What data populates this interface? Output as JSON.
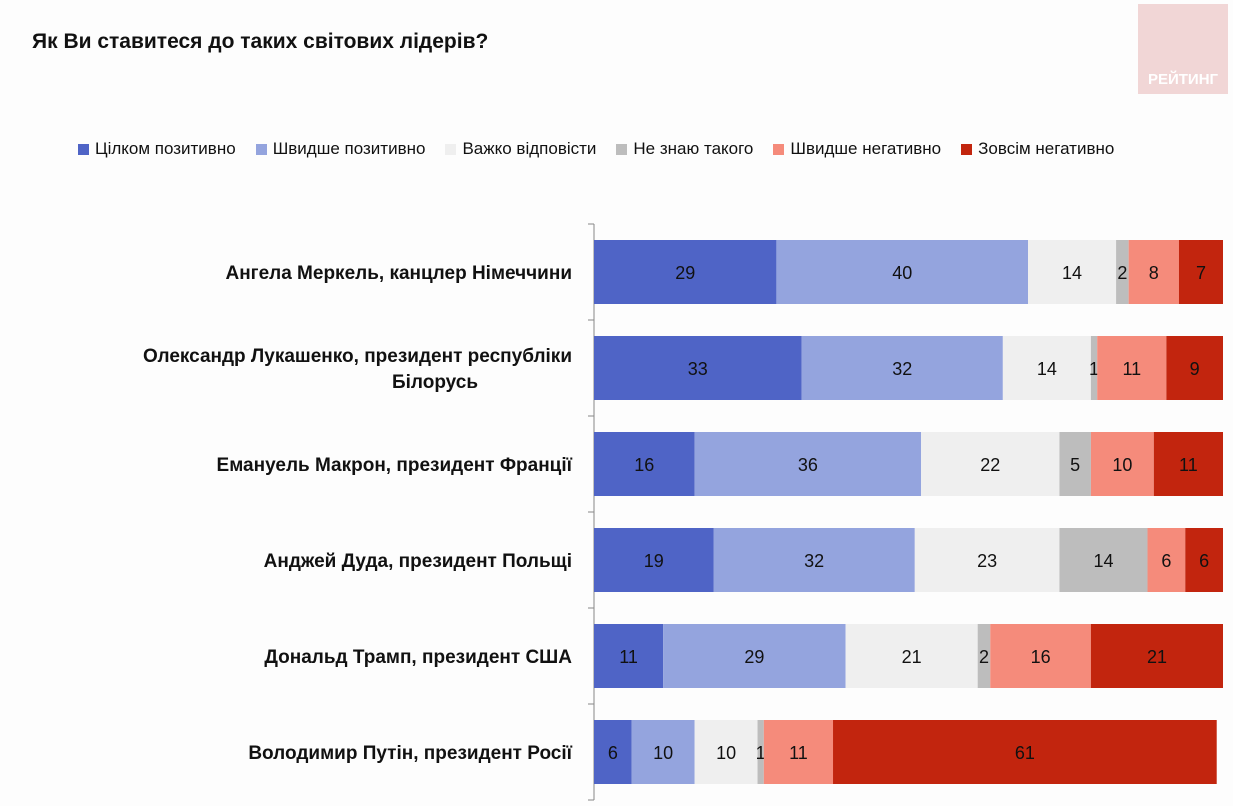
{
  "chart_data": {
    "type": "bar",
    "orientation": "horizontal",
    "stacked": true,
    "title": "Як Ви ставитеся до таких світових лідерів?",
    "categories": [
      [
        "Ангела Меркель, канцлер Німеччини"
      ],
      [
        "Олександр Лукашенко, президент республіки",
        "Білорусь"
      ],
      [
        "Емануель Макрон, президент Франції"
      ],
      [
        "Анджей Дуда, президент Польщі"
      ],
      [
        "Дональд Трамп, президент США"
      ],
      [
        "Володимир Путін, президент Росії"
      ]
    ],
    "series": [
      {
        "name": "Цілком позитивно",
        "color": "#4f64c6",
        "values": [
          29,
          33,
          16,
          19,
          11,
          6
        ]
      },
      {
        "name": "Швидше позитивно",
        "color": "#94a4de",
        "values": [
          40,
          32,
          36,
          32,
          29,
          10
        ]
      },
      {
        "name": "Важко відповісти",
        "color": "#efefef",
        "values": [
          14,
          14,
          22,
          23,
          21,
          10
        ]
      },
      {
        "name": "Не знаю такого",
        "color": "#bdbdbd",
        "values": [
          2,
          1,
          5,
          14,
          2,
          1
        ]
      },
      {
        "name": "Швидше негативно",
        "color": "#f58b7b",
        "values": [
          8,
          11,
          10,
          6,
          16,
          11
        ]
      },
      {
        "name": "Зовсім негативно",
        "color": "#c2250e",
        "values": [
          7,
          9,
          11,
          6,
          21,
          61
        ]
      }
    ],
    "xlim": [
      0,
      100
    ],
    "legend": "top",
    "grid": false,
    "data_labels": true
  },
  "logo_text": "РЕЙТИНГ"
}
